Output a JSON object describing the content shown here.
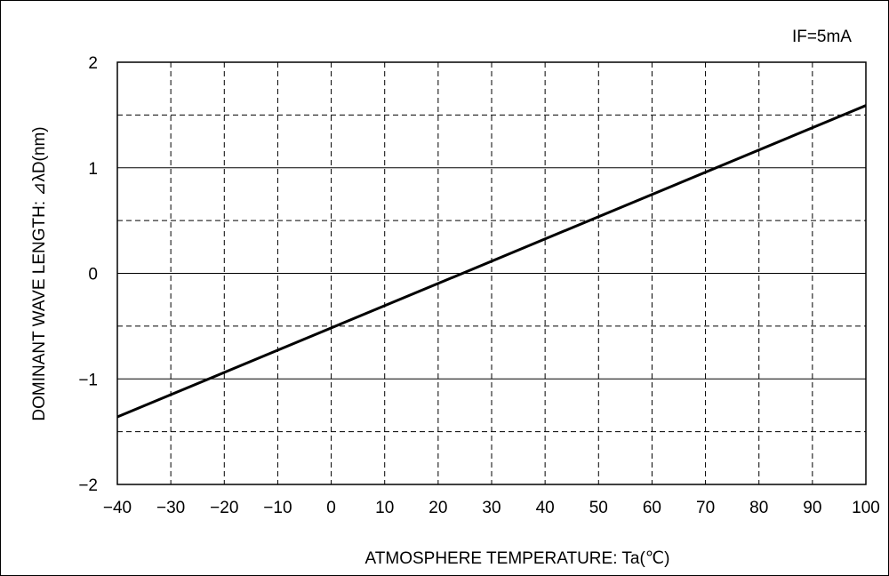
{
  "chart_data": {
    "type": "line",
    "annotation": "IF=5mA",
    "xlabel": "ATMOSPHERE TEMPERATURE: Ta(℃)",
    "ylabel": "DOMINANT WAVE LENGTH: ⊿λD(nm)",
    "xlim": [
      -40,
      100
    ],
    "ylim": [
      -2,
      2
    ],
    "x_ticks": [
      "−40",
      "−30",
      "−20",
      "−10",
      "0",
      "10",
      "20",
      "30",
      "40",
      "50",
      "60",
      "70",
      "80",
      "90",
      "100"
    ],
    "y_ticks": [
      "2",
      "1",
      "0",
      "−1",
      "−2"
    ],
    "grid": true,
    "series": [
      {
        "x": [
          -40,
          100
        ],
        "y": [
          -1.36,
          1.59
        ]
      }
    ],
    "colors": {
      "line": "#000000",
      "grid": "#000000"
    }
  }
}
